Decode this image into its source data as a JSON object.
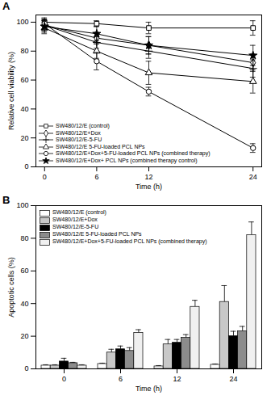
{
  "chart_data": [
    {
      "type": "line",
      "title": "A",
      "x_label": "Time (h)",
      "y_label": "Relative cell viability (%)",
      "x": [
        0,
        6,
        12,
        24
      ],
      "xlim": [
        -1,
        25
      ],
      "xticks": [
        0,
        6,
        12,
        24
      ],
      "ylim": [
        0,
        105
      ],
      "yticks": [
        0,
        20,
        40,
        60,
        80,
        100
      ],
      "legend": "lower left",
      "series": [
        {
          "name": "SW480/12/E (control)",
          "color": "#000000",
          "marker": "square",
          "values": [
            100,
            99,
            96,
            96
          ],
          "errors": [
            2,
            2,
            4,
            5
          ]
        },
        {
          "name": "SW480/12/E+Dox",
          "color": "#000000",
          "marker": "diamond",
          "values": [
            98,
            89,
            84,
            72
          ],
          "errors": [
            3,
            4,
            6,
            6
          ]
        },
        {
          "name": "SW480/12/E-5-FU",
          "color": "#000000",
          "marker": "plus",
          "values": [
            98,
            86,
            80,
            68
          ],
          "errors": [
            4,
            4,
            5,
            6
          ]
        },
        {
          "name": "SW480/12/E 5-FU-loaded PCL NPs",
          "color": "#000000",
          "marker": "triangle",
          "values": [
            96,
            80,
            65,
            59
          ],
          "errors": [
            4,
            5,
            8,
            8
          ]
        },
        {
          "name": "SW480/12/E+Dox+5-FU-loaded PCL NPs (combined therapy)",
          "color": "#000000",
          "marker": "circle",
          "values": [
            99,
            73,
            52,
            13
          ],
          "errors": [
            4,
            6,
            3,
            3
          ]
        },
        {
          "name": "SW480/12/E+Dox+ PCL NPs (combined therapy control)",
          "color": "#000000",
          "marker": "star",
          "values": [
            97,
            92,
            84,
            77
          ],
          "errors": [
            4,
            5,
            6,
            7
          ]
        }
      ]
    },
    {
      "type": "bar",
      "title": "B",
      "x_label": "Time (h)",
      "y_label": "Apoptotic cells (%)",
      "categories": [
        "0",
        "6",
        "12",
        "24"
      ],
      "ylim": [
        0,
        100
      ],
      "yticks": [
        0,
        20,
        40,
        60,
        80,
        100
      ],
      "legend": "upper left",
      "series": [
        {
          "name": "SW480/12/E (control)",
          "color": "#ffffff",
          "values": [
            2,
            3,
            1.5,
            2.5
          ],
          "errors": [
            0.5,
            0.5,
            0.5,
            0.5
          ]
        },
        {
          "name": "SW480/12/E+Dox",
          "color": "#c8c8c8",
          "values": [
            2,
            10,
            15,
            41
          ],
          "errors": [
            0.5,
            2,
            3,
            10
          ]
        },
        {
          "name": "SW480/12/E-5-FU",
          "color": "#000000",
          "values": [
            4.5,
            12,
            16,
            20
          ],
          "errors": [
            2,
            2,
            2,
            3
          ]
        },
        {
          "name": "SW480/12/E 5-FU-loaded PCL NPs",
          "color": "#8c8c8c",
          "values": [
            3.5,
            11,
            19,
            23
          ],
          "errors": [
            0.5,
            2,
            2,
            3
          ]
        },
        {
          "name": "SW480/12/E+Dox+5-FU-loaded PCL NPs (combined therapy)",
          "color": "#f0f0f0",
          "values": [
            2,
            22,
            38,
            82
          ],
          "errors": [
            0.5,
            2,
            4,
            8
          ]
        }
      ]
    }
  ]
}
